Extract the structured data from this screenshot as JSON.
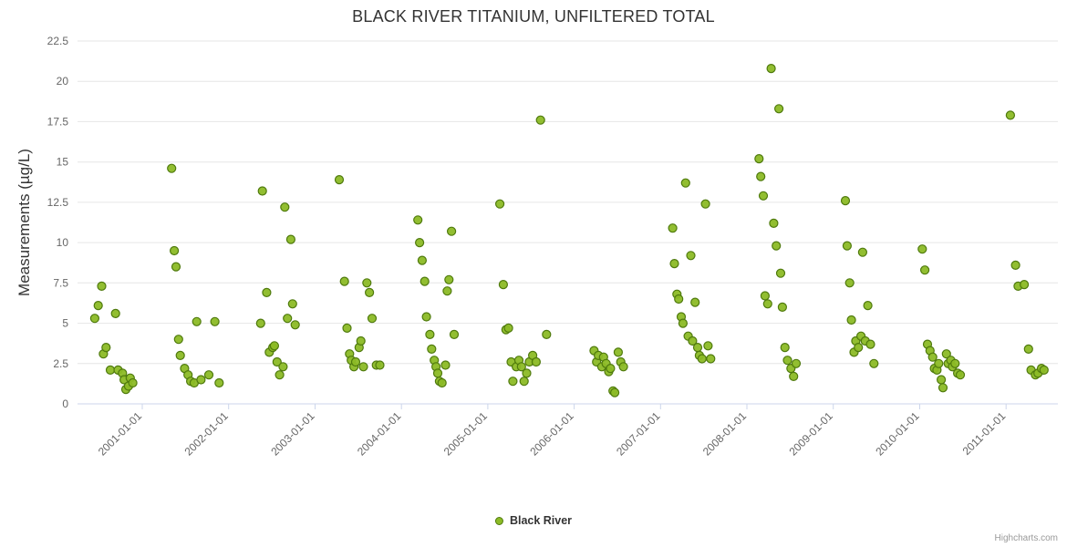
{
  "credits": "Highcharts.com",
  "chart_data": {
    "type": "scatter",
    "title": "BLACK RIVER TITANIUM, UNFILTERED TOTAL",
    "xlabel": "",
    "ylabel": "Measurements (µg/L)",
    "ylim": [
      0,
      22.5
    ],
    "xlim": [
      2000.25,
      2011.6
    ],
    "grid": true,
    "legend_position": "bottom",
    "y_ticks": [
      0,
      2.5,
      5,
      7.5,
      10,
      12.5,
      15,
      17.5,
      20,
      22.5
    ],
    "y_tick_labels": [
      "0",
      "2.5",
      "5",
      "7.5",
      "10",
      "12.5",
      "15",
      "17.5",
      "20",
      "22.5"
    ],
    "x_ticks": [
      2001,
      2002,
      2003,
      2004,
      2005,
      2006,
      2007,
      2008,
      2009,
      2010,
      2011
    ],
    "x_tick_labels": [
      "2001-01-01",
      "2002-01-01",
      "2003-01-01",
      "2004-01-01",
      "2005-01-01",
      "2006-01-01",
      "2007-01-01",
      "2008-01-01",
      "2009-01-01",
      "2010-01-01",
      "2011-01-01"
    ],
    "series": [
      {
        "name": "Black River",
        "marker": {
          "fill": "#8cbb26",
          "stroke": "#4f7a0d"
        },
        "points": [
          [
            2000.45,
            5.3
          ],
          [
            2000.49,
            6.1
          ],
          [
            2000.53,
            7.3
          ],
          [
            2000.55,
            3.1
          ],
          [
            2000.58,
            3.5
          ],
          [
            2000.63,
            2.1
          ],
          [
            2000.69,
            5.6
          ],
          [
            2000.72,
            2.1
          ],
          [
            2000.77,
            1.9
          ],
          [
            2000.79,
            1.5
          ],
          [
            2000.81,
            0.9
          ],
          [
            2000.84,
            1.1
          ],
          [
            2000.86,
            1.6
          ],
          [
            2000.89,
            1.3
          ],
          [
            2001.34,
            14.6
          ],
          [
            2001.37,
            9.5
          ],
          [
            2001.39,
            8.5
          ],
          [
            2001.42,
            4.0
          ],
          [
            2001.44,
            3.0
          ],
          [
            2001.49,
            2.2
          ],
          [
            2001.53,
            1.8
          ],
          [
            2001.56,
            1.4
          ],
          [
            2001.6,
            1.3
          ],
          [
            2001.63,
            5.1
          ],
          [
            2001.68,
            1.5
          ],
          [
            2001.77,
            1.8
          ],
          [
            2001.84,
            5.1
          ],
          [
            2001.89,
            1.3
          ],
          [
            2002.37,
            5.0
          ],
          [
            2002.39,
            13.2
          ],
          [
            2002.44,
            6.9
          ],
          [
            2002.47,
            3.2
          ],
          [
            2002.51,
            3.5
          ],
          [
            2002.53,
            3.6
          ],
          [
            2002.56,
            2.6
          ],
          [
            2002.59,
            1.8
          ],
          [
            2002.63,
            2.3
          ],
          [
            2002.65,
            12.2
          ],
          [
            2002.68,
            5.3
          ],
          [
            2002.72,
            10.2
          ],
          [
            2002.74,
            6.2
          ],
          [
            2002.77,
            4.9
          ],
          [
            2003.28,
            13.9
          ],
          [
            2003.34,
            7.6
          ],
          [
            2003.37,
            4.7
          ],
          [
            2003.4,
            3.1
          ],
          [
            2003.42,
            2.7
          ],
          [
            2003.45,
            2.3
          ],
          [
            2003.47,
            2.6
          ],
          [
            2003.51,
            3.5
          ],
          [
            2003.53,
            3.9
          ],
          [
            2003.56,
            2.3
          ],
          [
            2003.6,
            7.5
          ],
          [
            2003.63,
            6.9
          ],
          [
            2003.66,
            5.3
          ],
          [
            2003.71,
            2.4
          ],
          [
            2003.75,
            2.4
          ],
          [
            2004.19,
            11.4
          ],
          [
            2004.21,
            10.0
          ],
          [
            2004.24,
            8.9
          ],
          [
            2004.27,
            7.6
          ],
          [
            2004.29,
            5.4
          ],
          [
            2004.33,
            4.3
          ],
          [
            2004.35,
            3.4
          ],
          [
            2004.38,
            2.7
          ],
          [
            2004.4,
            2.3
          ],
          [
            2004.42,
            1.9
          ],
          [
            2004.44,
            1.4
          ],
          [
            2004.47,
            1.3
          ],
          [
            2004.51,
            2.4
          ],
          [
            2004.53,
            7.0
          ],
          [
            2004.55,
            7.7
          ],
          [
            2004.58,
            10.7
          ],
          [
            2004.61,
            4.3
          ],
          [
            2005.14,
            12.4
          ],
          [
            2005.18,
            7.4
          ],
          [
            2005.21,
            4.6
          ],
          [
            2005.24,
            4.7
          ],
          [
            2005.27,
            2.6
          ],
          [
            2005.29,
            1.4
          ],
          [
            2005.33,
            2.3
          ],
          [
            2005.36,
            2.7
          ],
          [
            2005.39,
            2.3
          ],
          [
            2005.42,
            1.4
          ],
          [
            2005.45,
            1.9
          ],
          [
            2005.48,
            2.6
          ],
          [
            2005.52,
            3.0
          ],
          [
            2005.56,
            2.6
          ],
          [
            2005.61,
            17.6
          ],
          [
            2005.68,
            4.3
          ],
          [
            2006.23,
            3.3
          ],
          [
            2006.26,
            2.6
          ],
          [
            2006.28,
            3.0
          ],
          [
            2006.32,
            2.3
          ],
          [
            2006.34,
            2.9
          ],
          [
            2006.37,
            2.5
          ],
          [
            2006.4,
            2.0
          ],
          [
            2006.42,
            2.2
          ],
          [
            2006.45,
            0.8
          ],
          [
            2006.47,
            0.7
          ],
          [
            2006.51,
            3.2
          ],
          [
            2006.54,
            2.6
          ],
          [
            2006.57,
            2.3
          ],
          [
            2007.14,
            10.9
          ],
          [
            2007.16,
            8.7
          ],
          [
            2007.19,
            6.8
          ],
          [
            2007.21,
            6.5
          ],
          [
            2007.24,
            5.4
          ],
          [
            2007.26,
            5.0
          ],
          [
            2007.29,
            13.7
          ],
          [
            2007.32,
            4.2
          ],
          [
            2007.35,
            9.2
          ],
          [
            2007.37,
            3.9
          ],
          [
            2007.4,
            6.3
          ],
          [
            2007.43,
            3.5
          ],
          [
            2007.45,
            3.0
          ],
          [
            2007.48,
            2.8
          ],
          [
            2007.52,
            12.4
          ],
          [
            2007.55,
            3.6
          ],
          [
            2007.58,
            2.8
          ],
          [
            2008.14,
            15.2
          ],
          [
            2008.16,
            14.1
          ],
          [
            2008.19,
            12.9
          ],
          [
            2008.21,
            6.7
          ],
          [
            2008.24,
            6.2
          ],
          [
            2008.28,
            20.8
          ],
          [
            2008.31,
            11.2
          ],
          [
            2008.34,
            9.8
          ],
          [
            2008.37,
            18.3
          ],
          [
            2008.39,
            8.1
          ],
          [
            2008.41,
            6.0
          ],
          [
            2008.44,
            3.5
          ],
          [
            2008.47,
            2.7
          ],
          [
            2008.51,
            2.2
          ],
          [
            2008.54,
            1.7
          ],
          [
            2008.57,
            2.5
          ],
          [
            2009.14,
            12.6
          ],
          [
            2009.16,
            9.8
          ],
          [
            2009.19,
            7.5
          ],
          [
            2009.21,
            5.2
          ],
          [
            2009.24,
            3.2
          ],
          [
            2009.26,
            3.9
          ],
          [
            2009.29,
            3.5
          ],
          [
            2009.32,
            4.2
          ],
          [
            2009.34,
            9.4
          ],
          [
            2009.37,
            3.9
          ],
          [
            2009.4,
            6.1
          ],
          [
            2009.43,
            3.7
          ],
          [
            2009.47,
            2.5
          ],
          [
            2010.03,
            9.6
          ],
          [
            2010.06,
            8.3
          ],
          [
            2010.09,
            3.7
          ],
          [
            2010.12,
            3.3
          ],
          [
            2010.15,
            2.9
          ],
          [
            2010.17,
            2.2
          ],
          [
            2010.2,
            2.1
          ],
          [
            2010.22,
            2.5
          ],
          [
            2010.25,
            1.5
          ],
          [
            2010.27,
            1.0
          ],
          [
            2010.31,
            3.1
          ],
          [
            2010.33,
            2.5
          ],
          [
            2010.36,
            2.7
          ],
          [
            2010.38,
            2.3
          ],
          [
            2010.41,
            2.5
          ],
          [
            2010.44,
            1.9
          ],
          [
            2010.47,
            1.8
          ],
          [
            2011.05,
            17.9
          ],
          [
            2011.11,
            8.6
          ],
          [
            2011.14,
            7.3
          ],
          [
            2011.21,
            7.4
          ],
          [
            2011.26,
            3.4
          ],
          [
            2011.29,
            2.1
          ],
          [
            2011.34,
            1.8
          ],
          [
            2011.37,
            1.9
          ],
          [
            2011.41,
            2.2
          ],
          [
            2011.44,
            2.1
          ]
        ]
      }
    ]
  }
}
